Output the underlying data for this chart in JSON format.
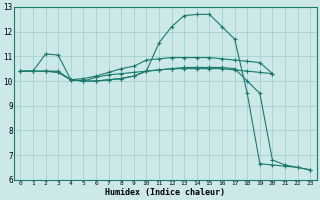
{
  "xlabel": "Humidex (Indice chaleur)",
  "xlim": [
    -0.5,
    23.5
  ],
  "ylim": [
    6,
    13
  ],
  "xticks": [
    0,
    1,
    2,
    3,
    4,
    5,
    6,
    7,
    8,
    9,
    10,
    11,
    12,
    13,
    14,
    15,
    16,
    17,
    18,
    19,
    20,
    21,
    22,
    23
  ],
  "yticks": [
    6,
    7,
    8,
    9,
    10,
    11,
    12,
    13
  ],
  "bg_color": "#cce8e8",
  "grid_color": "#aad4d4",
  "line_color": "#1a7a6e",
  "line1_x": [
    0,
    1,
    2,
    3,
    4,
    5,
    6,
    7,
    8,
    9,
    10,
    11,
    12,
    13,
    14,
    15,
    16,
    17,
    18,
    19,
    20
  ],
  "line1_y": [
    10.4,
    10.4,
    10.4,
    10.4,
    10.05,
    10.0,
    10.15,
    10.25,
    10.3,
    10.35,
    10.4,
    10.45,
    10.5,
    10.5,
    10.5,
    10.5,
    10.5,
    10.45,
    10.4,
    10.35,
    10.3
  ],
  "line2_x": [
    0,
    1,
    2,
    3,
    4,
    5,
    6,
    7,
    8,
    9,
    10,
    11,
    12,
    13,
    14,
    15,
    16,
    17,
    18,
    19,
    20
  ],
  "line2_y": [
    10.4,
    10.4,
    11.1,
    11.05,
    10.05,
    10.1,
    10.2,
    10.35,
    10.5,
    10.6,
    10.85,
    10.9,
    10.95,
    10.95,
    10.95,
    10.95,
    10.9,
    10.85,
    10.8,
    10.75,
    10.3
  ],
  "line3_x": [
    0,
    1,
    2,
    3,
    4,
    5,
    6,
    7,
    8,
    9,
    10,
    11,
    12,
    13,
    14,
    15,
    16,
    17,
    18,
    19,
    20,
    21,
    22,
    23
  ],
  "line3_y": [
    10.4,
    10.4,
    10.4,
    10.35,
    10.05,
    10.0,
    10.0,
    10.05,
    10.1,
    10.2,
    10.4,
    11.55,
    12.2,
    12.65,
    12.7,
    12.7,
    12.2,
    11.7,
    9.5,
    6.65,
    6.6,
    6.55,
    6.5,
    6.4
  ],
  "line4_x": [
    2,
    3,
    4,
    5,
    6,
    7,
    8,
    9,
    10,
    11,
    12,
    13,
    14,
    15,
    16,
    17,
    18,
    19,
    20,
    21,
    22,
    23
  ],
  "line4_y": [
    10.4,
    10.35,
    10.05,
    10.0,
    10.0,
    10.05,
    10.1,
    10.2,
    10.4,
    10.45,
    10.5,
    10.55,
    10.55,
    10.55,
    10.55,
    10.5,
    10.0,
    9.5,
    6.8,
    6.6,
    6.5,
    6.4
  ]
}
